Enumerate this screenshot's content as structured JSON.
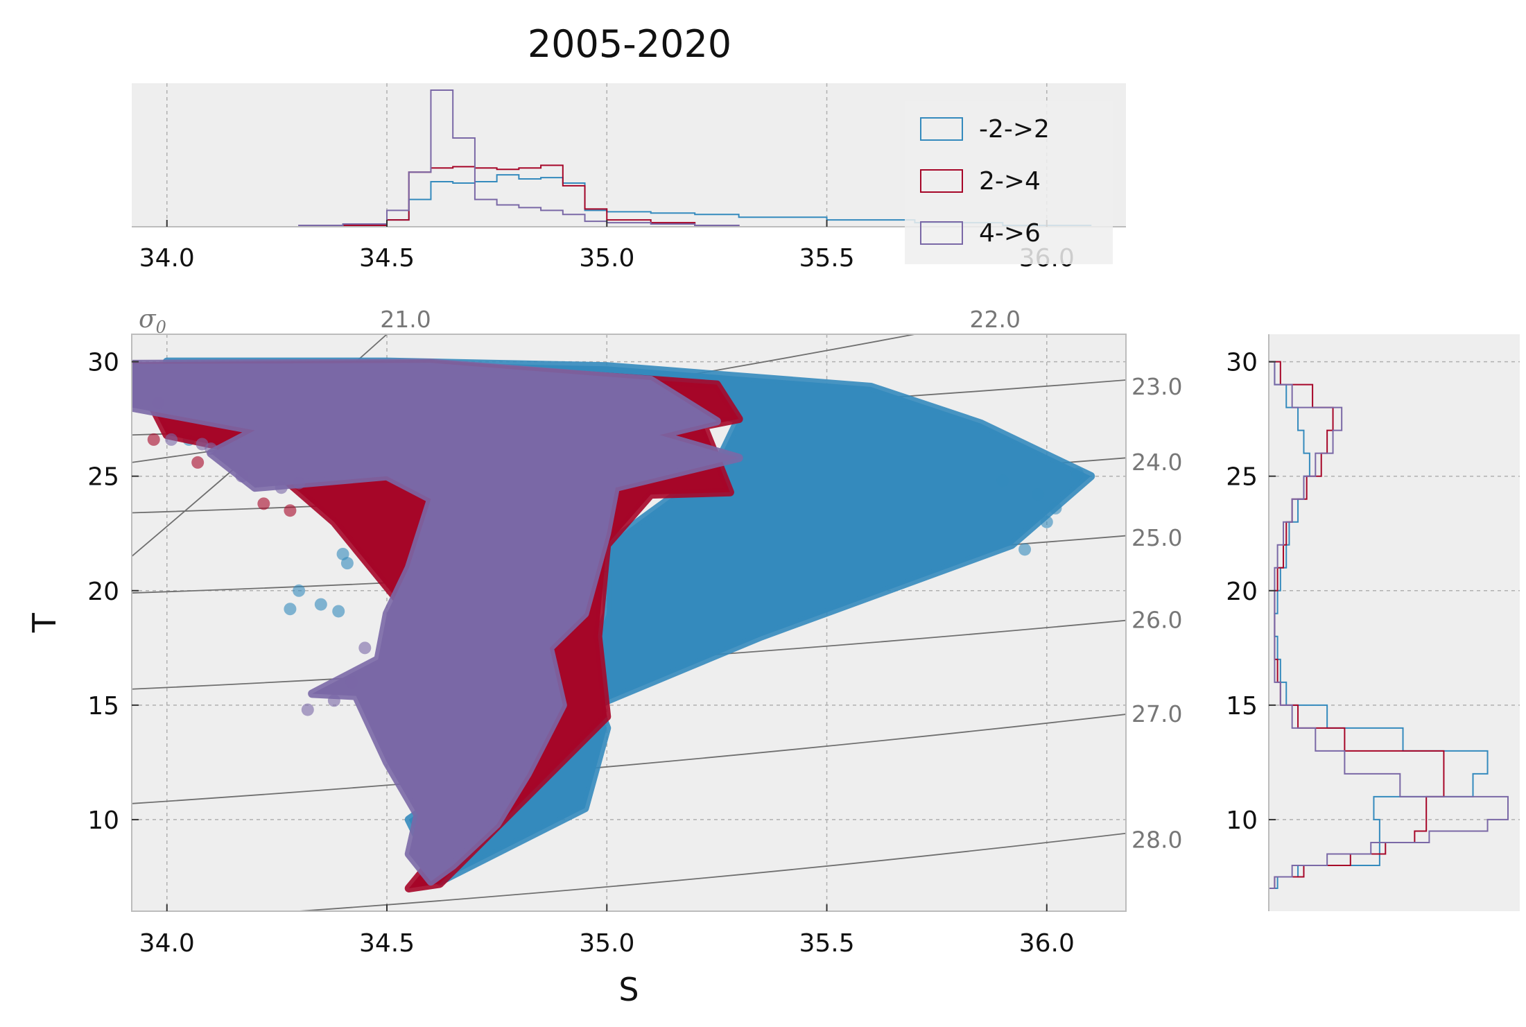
{
  "title": "2005-2020",
  "chart_data": [
    {
      "panel": "top-histogram",
      "type": "histogram-step",
      "x_variable": "S",
      "xlim": [
        33.92,
        36.18
      ],
      "x_ticks": [
        "34.0",
        "34.5",
        "35.0",
        "35.5",
        "36.0"
      ],
      "bin_edges": [
        34.3,
        34.4,
        34.5,
        34.55,
        34.6,
        34.65,
        34.7,
        34.75,
        34.8,
        34.85,
        34.9,
        34.95,
        35.0,
        35.1,
        35.2,
        35.3,
        35.5,
        35.7,
        35.9,
        36.1
      ],
      "series": [
        {
          "name": "-2->2",
          "color": "#348ABD",
          "values": [
            0,
            0,
            0.05,
            0.2,
            0.33,
            0.32,
            0.33,
            0.38,
            0.35,
            0.36,
            0.32,
            0.12,
            0.11,
            0.1,
            0.09,
            0.07,
            0.05,
            0.03,
            0.01
          ]
        },
        {
          "name": "2->4",
          "color": "#A60628",
          "values": [
            0,
            0.01,
            0.05,
            0.4,
            0.43,
            0.44,
            0.43,
            0.42,
            0.43,
            0.45,
            0.3,
            0.13,
            0.05,
            0.03,
            0.01,
            0,
            0,
            0,
            0
          ]
        },
        {
          "name": "4->6",
          "color": "#7A68A6",
          "values": [
            0.01,
            0.02,
            0.12,
            0.4,
            1.0,
            0.65,
            0.2,
            0.16,
            0.14,
            0.12,
            0.09,
            0.04,
            0.03,
            0.02,
            0.01,
            0,
            0,
            0,
            0
          ]
        }
      ],
      "legend_position": "upper-right"
    },
    {
      "panel": "main-scatter",
      "type": "scatter",
      "xlabel": "S",
      "ylabel": "T",
      "xlim": [
        33.92,
        36.18
      ],
      "ylim": [
        6.0,
        31.2
      ],
      "x_ticks": [
        "34.0",
        "34.5",
        "35.0",
        "35.5",
        "36.0"
      ],
      "y_ticks": [
        "10",
        "15",
        "20",
        "25",
        "30"
      ],
      "grid": true,
      "density_contours": {
        "symbol": "σ0",
        "labels_top": [
          {
            "label": "21.0",
            "S": 34.53
          },
          {
            "label": "22.0",
            "S": 35.87
          }
        ],
        "labels_right": [
          {
            "label": "23.0",
            "T": 28.9
          },
          {
            "label": "24.0",
            "T": 25.6
          },
          {
            "label": "25.0",
            "T": 22.3
          },
          {
            "label": "26.0",
            "T": 18.7
          },
          {
            "label": "27.0",
            "T": 14.6
          },
          {
            "label": "28.0",
            "T": 9.1
          }
        ],
        "lines": [
          {
            "S0": 33.92,
            "T0": 21.5,
            "S1": 34.5,
            "T1": 31.2
          },
          {
            "S0": 33.92,
            "T0": 25.6,
            "S1": 35.7,
            "T1": 31.2
          },
          {
            "S0": 33.92,
            "T0": 26.8,
            "S1": 36.18,
            "T1": 29.2
          },
          {
            "S0": 33.92,
            "T0": 23.4,
            "S1": 36.18,
            "T1": 25.8
          },
          {
            "S0": 33.92,
            "T0": 19.9,
            "S1": 36.18,
            "T1": 22.4
          },
          {
            "S0": 33.92,
            "T0": 15.7,
            "S1": 36.18,
            "T1": 18.7
          },
          {
            "S0": 33.92,
            "T0": 10.7,
            "S1": 36.18,
            "T1": 14.6
          },
          {
            "S0": 34.3,
            "T0": 6.0,
            "S1": 36.18,
            "T1": 9.4
          }
        ]
      },
      "series": [
        {
          "name": "-2->2",
          "color": "#348ABD",
          "envelope": [
            [
              34.0,
              30.0
            ],
            [
              34.5,
              30.0
            ],
            [
              35.0,
              29.8
            ],
            [
              35.6,
              28.9
            ],
            [
              35.85,
              27.3
            ],
            [
              36.1,
              25.0
            ],
            [
              35.92,
              22.0
            ],
            [
              35.35,
              18.0
            ],
            [
              34.85,
              14.0
            ],
            [
              34.55,
              10.0
            ],
            [
              34.62,
              7.3
            ],
            [
              34.95,
              10.5
            ],
            [
              35.0,
              14.0
            ],
            [
              34.95,
              16.5
            ],
            [
              35.0,
              19.0
            ],
            [
              35.0,
              22.0
            ],
            [
              35.25,
              25.5
            ],
            [
              35.3,
              27.5
            ],
            [
              35.0,
              28.5
            ],
            [
              34.2,
              29.0
            ]
          ],
          "outliers": [
            [
              36.07,
              25.1
            ],
            [
              35.98,
              24.2
            ],
            [
              36.0,
              23.0
            ],
            [
              35.95,
              21.8
            ],
            [
              34.05,
              26.6
            ],
            [
              34.4,
              21.6
            ],
            [
              34.35,
              19.4
            ],
            [
              34.3,
              20.0
            ],
            [
              34.28,
              19.2
            ],
            [
              34.39,
              19.1
            ],
            [
              34.41,
              21.2
            ],
            [
              36.02,
              23.6
            ],
            [
              35.9,
              24.8
            ]
          ]
        },
        {
          "name": "2->4",
          "color": "#A60628",
          "envelope": [
            [
              33.92,
              29.8
            ],
            [
              34.6,
              29.9
            ],
            [
              35.25,
              29.0
            ],
            [
              35.3,
              27.5
            ],
            [
              35.22,
              27.2
            ],
            [
              35.28,
              24.3
            ],
            [
              35.1,
              24.2
            ],
            [
              35.0,
              22.0
            ],
            [
              34.98,
              18.0
            ],
            [
              35.0,
              14.5
            ],
            [
              34.62,
              7.2
            ],
            [
              34.55,
              7.0
            ],
            [
              34.7,
              10.5
            ],
            [
              34.75,
              15.5
            ],
            [
              34.55,
              19.0
            ],
            [
              34.38,
              23.0
            ],
            [
              34.2,
              26.0
            ],
            [
              34.0,
              26.8
            ]
          ],
          "outliers": [
            [
              33.97,
              26.6
            ],
            [
              34.2,
              25.0
            ],
            [
              34.22,
              23.8
            ],
            [
              34.28,
              23.5
            ],
            [
              34.07,
              25.6
            ],
            [
              34.15,
              26.1
            ]
          ]
        },
        {
          "name": "4->6",
          "color": "#7A68A6",
          "envelope": [
            [
              33.92,
              29.9
            ],
            [
              34.6,
              29.95
            ],
            [
              35.1,
              29.2
            ],
            [
              35.25,
              27.4
            ],
            [
              35.12,
              26.8
            ],
            [
              35.3,
              25.8
            ],
            [
              35.02,
              24.5
            ],
            [
              35.0,
              22.5
            ],
            [
              34.95,
              19.0
            ],
            [
              34.87,
              17.5
            ],
            [
              34.9,
              15.0
            ],
            [
              34.82,
              12.0
            ],
            [
              34.75,
              9.8
            ],
            [
              34.65,
              8.0
            ],
            [
              34.6,
              7.3
            ],
            [
              34.55,
              8.5
            ],
            [
              34.57,
              10.2
            ],
            [
              34.5,
              12.5
            ],
            [
              34.43,
              15.4
            ],
            [
              34.33,
              15.5
            ],
            [
              34.48,
              17.0
            ],
            [
              34.5,
              19.0
            ],
            [
              34.55,
              21.0
            ],
            [
              34.6,
              24.0
            ],
            [
              34.5,
              25.0
            ],
            [
              34.2,
              24.5
            ],
            [
              34.1,
              26.0
            ],
            [
              34.2,
              27.0
            ],
            [
              33.92,
              28.0
            ]
          ],
          "outliers": [
            [
              34.01,
              26.6
            ],
            [
              34.08,
              26.4
            ],
            [
              34.1,
              26.2
            ],
            [
              34.17,
              25.0
            ],
            [
              34.3,
              24.7
            ],
            [
              34.38,
              15.2
            ],
            [
              34.32,
              14.8
            ],
            [
              34.42,
              16.0
            ],
            [
              34.45,
              17.5
            ],
            [
              33.98,
              28.2
            ],
            [
              34.26,
              24.5
            ]
          ]
        }
      ]
    },
    {
      "panel": "right-histogram",
      "type": "histogram-step",
      "orientation": "horizontal",
      "y_variable": "T",
      "ylim": [
        6.0,
        31.2
      ],
      "y_ticks": [
        "10",
        "15",
        "20",
        "25",
        "30"
      ],
      "bin_edges": [
        7.0,
        7.5,
        8.0,
        8.5,
        9.0,
        9.5,
        10.0,
        11.0,
        12.0,
        13.0,
        14.0,
        15.0,
        16.0,
        17.0,
        18.0,
        19.0,
        20.0,
        21.0,
        22.0,
        23.0,
        24.0,
        25.0,
        26.0,
        27.0,
        28.0,
        29.0,
        30.0
      ],
      "series": [
        {
          "name": "-2->2",
          "color": "#348ABD",
          "values": [
            0.03,
            0.1,
            0.38,
            0.38,
            0.38,
            0.38,
            0.36,
            0.7,
            0.75,
            0.46,
            0.2,
            0.06,
            0.04,
            0.03,
            0.02,
            0.03,
            0.04,
            0.06,
            0.07,
            0.1,
            0.12,
            0.14,
            0.12,
            0.1,
            0.06,
            0.02
          ]
        },
        {
          "name": "2->4",
          "color": "#A60628",
          "values": [
            0.02,
            0.12,
            0.28,
            0.4,
            0.5,
            0.54,
            0.54,
            0.6,
            0.6,
            0.26,
            0.1,
            0.04,
            0.03,
            0.02,
            0.02,
            0.02,
            0.03,
            0.05,
            0.06,
            0.08,
            0.13,
            0.18,
            0.2,
            0.22,
            0.15,
            0.04
          ]
        },
        {
          "name": "4->6",
          "color": "#7A68A6",
          "values": [
            0.02,
            0.08,
            0.2,
            0.35,
            0.55,
            0.75,
            0.82,
            0.45,
            0.26,
            0.16,
            0.08,
            0.04,
            0.02,
            0.02,
            0.02,
            0.02,
            0.02,
            0.03,
            0.05,
            0.08,
            0.12,
            0.16,
            0.22,
            0.25,
            0.08,
            0.02
          ]
        }
      ]
    }
  ]
}
